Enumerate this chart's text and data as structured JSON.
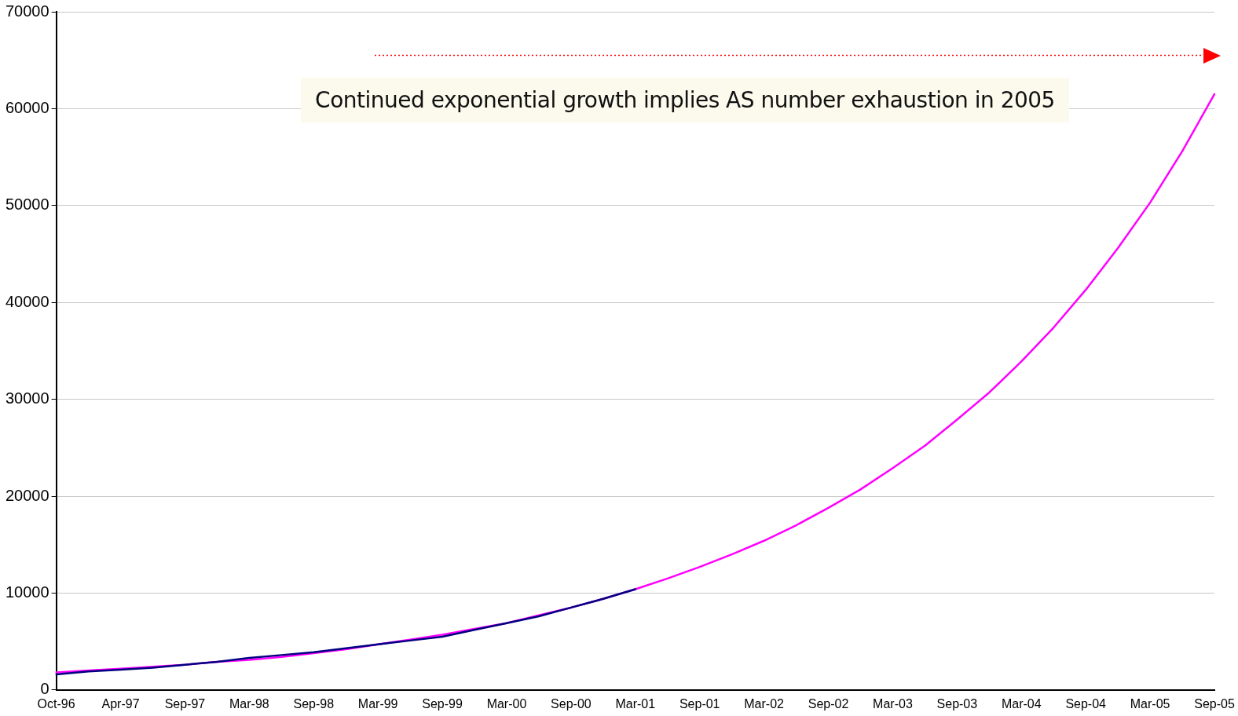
{
  "chart_data": {
    "type": "line",
    "categories": [
      "Oct-96",
      null,
      "Apr-97",
      null,
      "Sep-97",
      null,
      "Mar-98",
      null,
      "Sep-98",
      null,
      "Mar-99",
      null,
      "Sep-99",
      null,
      "Mar-00",
      null,
      "Sep-00",
      null,
      "Mar-01",
      null,
      "Sep-01",
      null,
      "Mar-02",
      null,
      "Sep-02",
      null,
      "Mar-03",
      null,
      "Sep-03",
      null,
      "Mar-04",
      null,
      "Sep-04",
      null,
      "Mar-05",
      null,
      "Sep-05"
    ],
    "series": [
      {
        "color": "#ff00ff",
        "values": [
          1800,
          2000,
          2200,
          2400,
          2600,
          2900,
          3100,
          3400,
          3800,
          4200,
          4700,
          5200,
          5700,
          6300,
          6900,
          7700,
          8500,
          9400,
          10400,
          11500,
          12700,
          14000,
          15400,
          17000,
          18800,
          20700,
          22900,
          25200,
          27900,
          30700,
          33900,
          37400,
          41300,
          45600,
          50300,
          55600,
          61500
        ]
      },
      {
        "color": "#000080",
        "values": [
          1600,
          1900,
          2100,
          2300,
          2600,
          2900,
          3300,
          3600,
          3900,
          4300,
          4700,
          5100,
          5500,
          6200,
          6900,
          7600,
          8500,
          9400,
          10400,
          null,
          null,
          null,
          null,
          null,
          null,
          null,
          null,
          null,
          null,
          null,
          null,
          null,
          null,
          null,
          null,
          null,
          null
        ]
      }
    ],
    "ylim": [
      0,
      70000
    ],
    "yticks": [
      0,
      10000,
      20000,
      30000,
      40000,
      50000,
      60000,
      70000
    ],
    "grid": "y",
    "legend": false,
    "marker": "none",
    "line_style": "solid",
    "annotations": [
      "Continued exponential growth implies AS number exhaustion in 2005"
    ],
    "ref_lines": [
      {
        "axis": "y",
        "value": 65500,
        "color": "#ff0000",
        "line_style": "dotted"
      }
    ]
  }
}
